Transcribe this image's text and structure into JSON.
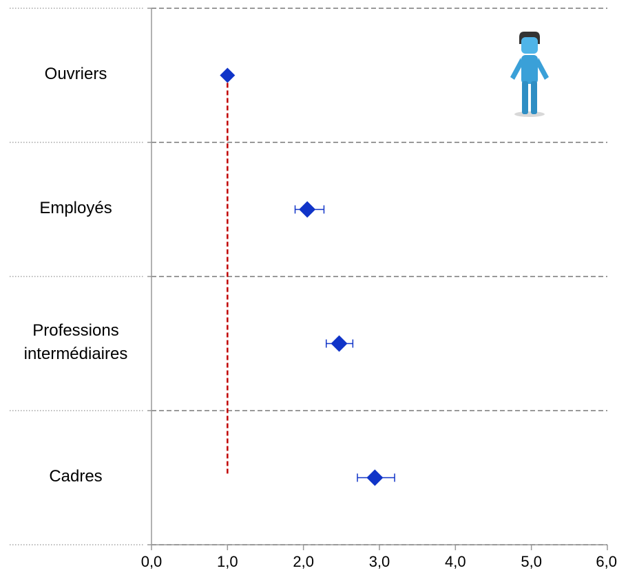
{
  "chart_data": {
    "type": "scatter",
    "categories": [
      "Ouvriers",
      "Employés",
      "Professions intermédiaires",
      "Cadres"
    ],
    "category_lines": [
      [
        "Ouvriers"
      ],
      [
        "Employés"
      ],
      [
        "Professions",
        "intermédiaires"
      ],
      [
        "Cadres"
      ]
    ],
    "points": [
      {
        "category": "Ouvriers",
        "value": 1.0,
        "low": 1.0,
        "high": 1.0
      },
      {
        "category": "Employés",
        "value": 2.05,
        "low": 1.89,
        "high": 2.27
      },
      {
        "category": "Professions intermédiaires",
        "value": 2.47,
        "low": 2.3,
        "high": 2.65
      },
      {
        "category": "Cadres",
        "value": 2.94,
        "low": 2.71,
        "high": 3.2
      }
    ],
    "reference_line": {
      "x": 1.0,
      "style": "dashed",
      "color": "#c00000"
    },
    "xlim": [
      0,
      6
    ],
    "x_ticks": [
      "0,0",
      "1,0",
      "2,0",
      "3,0",
      "4,0",
      "5,0",
      "6,0"
    ],
    "grid": "horizontal dashed separators",
    "marker_color": "#1034c8",
    "icon": "person-icon",
    "icon_color": "#3aa0d8"
  }
}
